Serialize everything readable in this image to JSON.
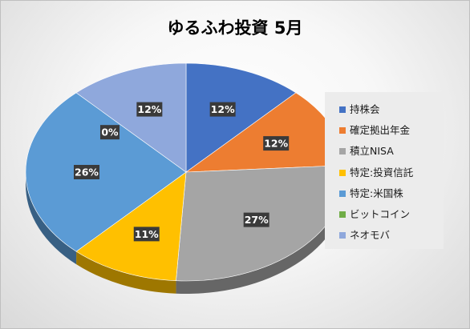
{
  "chart_data": {
    "type": "pie",
    "title": "ゆるふわ投資 5月",
    "legend_position": "right",
    "slices": [
      {
        "name": "持株会",
        "value": 12,
        "label": "12%",
        "color": "#4472C4"
      },
      {
        "name": "確定拠出年金",
        "value": 12,
        "label": "12%",
        "color": "#ED7D31"
      },
      {
        "name": "積立NISA",
        "value": 27,
        "label": "27%",
        "color": "#A5A5A5"
      },
      {
        "name": "特定:投資信託",
        "value": 11,
        "label": "11%",
        "color": "#FFC000"
      },
      {
        "name": "特定:米国株",
        "value": 26,
        "label": "26%",
        "color": "#5B9BD5"
      },
      {
        "name": "ビットコイン",
        "value": 0,
        "label": "0%",
        "color": "#70AD47"
      },
      {
        "name": "ネオモバ",
        "value": 12,
        "label": "12%",
        "color": "#8FA8DC"
      }
    ]
  }
}
